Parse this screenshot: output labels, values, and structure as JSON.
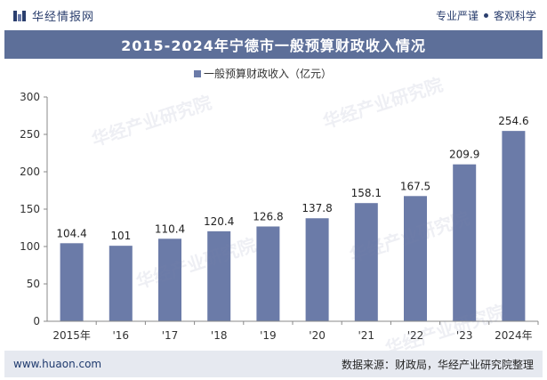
{
  "header": {
    "brand_name": "华经情报网",
    "tagline_left": "专业严谨",
    "tagline_right": "客观科学"
  },
  "watermark_text": "华经产业研究院",
  "footer": {
    "website": "www.huaon.com",
    "source": "数据来源：财政局，华经产业研究院整理"
  },
  "colors": {
    "bar": "#6b7ba8",
    "title_bg": "#5d6f99",
    "footer_bg": "#e6e9f0"
  },
  "chart_data": {
    "type": "bar",
    "title": "2015-2024年宁德市一般预算财政收入情况",
    "categories": [
      "2015年",
      "'16",
      "'17",
      "'18",
      "'19",
      "'20",
      "'21",
      "'22",
      "'23",
      "2024年"
    ],
    "series": [
      {
        "name": "一般预算财政收入（亿元）",
        "values": [
          104.4,
          101,
          110.4,
          120.4,
          126.8,
          137.8,
          158.1,
          167.5,
          209.9,
          254.6
        ],
        "labels": [
          "104.4",
          "101",
          "110.4",
          "120.4",
          "126.8",
          "137.8",
          "158.1",
          "167.5",
          "209.9",
          "254.6"
        ]
      }
    ],
    "ylim": [
      0,
      300
    ],
    "yticks": [
      0,
      50,
      100,
      150,
      200,
      250,
      300
    ],
    "xlabel": "",
    "ylabel": "",
    "grid": false,
    "legend_position": "top-center"
  }
}
